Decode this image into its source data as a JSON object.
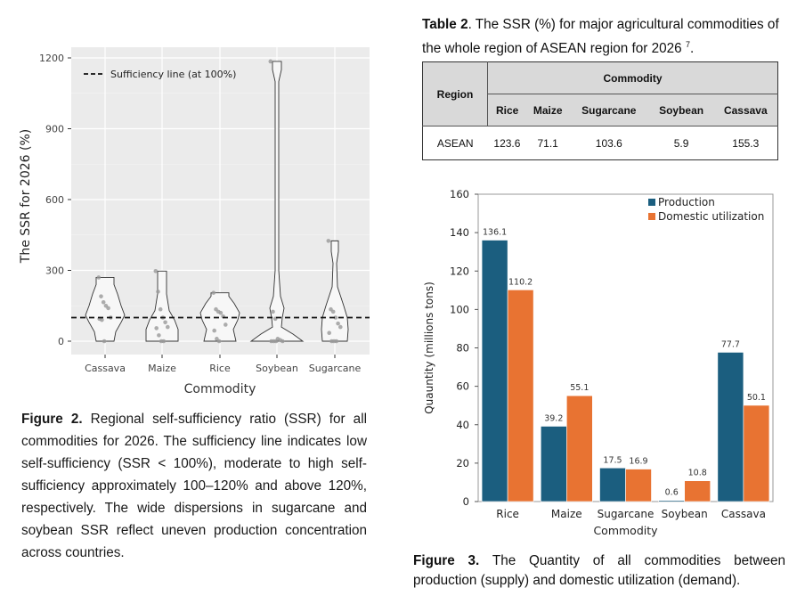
{
  "figure2": {
    "caption_label": "Figure 2.",
    "caption_text": " Regional self-sufficiency ratio (SSR) for all commodities for 2026. The sufficiency line indicates low self-sufficiency (SSR < 100%), moderate to high self-sufficiency approximately 100–120% and above 120%, respectively. The wide dispersions in sugarcane and soybean SSR reflect uneven production concentration across countries."
  },
  "table2": {
    "caption_label": "Table 2",
    "caption_text": ". The SSR (%) for major agricultural commodities of the whole region of ASEAN region for 2026",
    "caption_sup": "7",
    "caption_end": ".",
    "header_region": "Region",
    "header_group": "Commodity",
    "columns": [
      "Rice",
      "Maize",
      "Sugarcane",
      "Soybean",
      "Cassava"
    ],
    "rows": [
      {
        "region": "ASEAN",
        "values": [
          "123.6",
          "71.1",
          "103.6",
          "5.9",
          "155.3"
        ]
      }
    ]
  },
  "figure3": {
    "caption_label": "Figure 3.",
    "caption_text": " The Quantity of all commodities between production (supply) and domestic utilization (demand)."
  },
  "chart_data": [
    {
      "type": "violin",
      "xlabel": "Commodity",
      "ylabel": "The SSR for 2026 (%)",
      "categories": [
        "Cassava",
        "Maize",
        "Rice",
        "Soybean",
        "Sugarcane"
      ],
      "yticks": [
        0,
        300,
        600,
        900,
        1200
      ],
      "ylim": [
        -100,
        1290
      ],
      "grid": true,
      "background": "#ebebeb",
      "reference_line": {
        "value": 100,
        "label": "Sufficiency line (at 100%)",
        "style": "dashed"
      },
      "legend_position": "top-left",
      "points": [
        [
          270,
          190,
          165,
          150,
          140,
          100,
          95,
          90,
          0
        ],
        [
          297,
          210,
          135,
          100,
          80,
          60,
          55,
          25,
          0,
          0
        ],
        [
          205,
          135,
          125,
          120,
          105,
          70,
          45,
          10,
          0
        ],
        [
          1185,
          125,
          95,
          10,
          5,
          0,
          0,
          0,
          0
        ],
        [
          425,
          135,
          125,
          100,
          75,
          60,
          35,
          0,
          0,
          0
        ]
      ]
    },
    {
      "type": "bar",
      "xlabel": "Commodity",
      "ylabel": "Quauntity (millions tons)",
      "categories": [
        "Rice",
        "Maize",
        "Sugarcane",
        "Soybean",
        "Cassava"
      ],
      "ylim": [
        0,
        160
      ],
      "yticks": [
        0,
        20,
        40,
        60,
        80,
        100,
        120,
        140,
        160
      ],
      "legend_position": "top-right",
      "series": [
        {
          "name": "Production",
          "color": "#1b5e7f",
          "values": [
            136.1,
            39.2,
            17.5,
            0.6,
            77.7
          ],
          "labels": [
            "136.1",
            "39.2",
            "17.5",
            "0.6",
            "77.7"
          ]
        },
        {
          "name": "Domestic utilization",
          "color": "#e87332",
          "values": [
            110.2,
            55.1,
            16.9,
            10.8,
            50.1
          ],
          "labels": [
            "110.2",
            "55.1",
            "16.9",
            "10.8",
            "50.1"
          ]
        }
      ]
    }
  ]
}
